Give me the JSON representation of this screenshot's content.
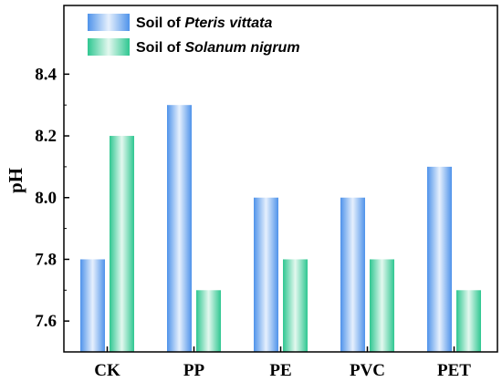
{
  "chart_data": {
    "type": "bar",
    "categories": [
      "CK",
      "PP",
      "PE",
      "PVC",
      "PET"
    ],
    "series": [
      {
        "name_prefix": "Soil of ",
        "name_italic": "Pteris vittata",
        "color": "#4f93ea",
        "values": [
          7.8,
          8.3,
          8.0,
          8.0,
          8.1
        ]
      },
      {
        "name_prefix": "Soil of ",
        "name_italic": "Solanum nigrum",
        "color": "#2fc791",
        "values": [
          8.2,
          7.7,
          7.8,
          7.8,
          7.7
        ]
      }
    ],
    "ylabel": "pH",
    "ylim": [
      7.5,
      8.5
    ],
    "yticks": [
      "7.6",
      "7.8",
      "8.0",
      "8.2",
      "8.4"
    ],
    "legend_position": "top-left",
    "grid": false
  }
}
